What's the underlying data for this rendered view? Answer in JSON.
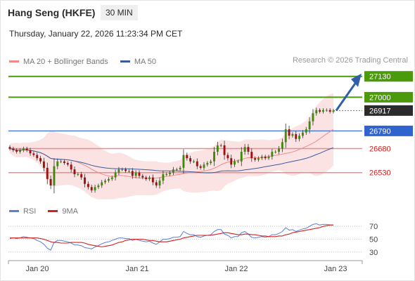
{
  "header": {
    "title": "Hang Seng (HKFE)",
    "timeframe": "30 MIN",
    "timestamp": "Thursday, January 22, 2026 11:23:34 PM CET"
  },
  "legend": {
    "ma20": {
      "label": "MA 20 + Bollinger Bands",
      "color": "#f08a8a"
    },
    "ma50": {
      "label": "MA 50",
      "color": "#3a5ba0"
    },
    "rsi": {
      "label": "RSI",
      "color": "#5b7fd6"
    },
    "rsi_ma": {
      "label": "9MA",
      "color": "#d62020"
    }
  },
  "credit": "Research © 2026 Trading Central",
  "chart_data": {
    "type": "candlestick",
    "price_range": [
      26380,
      27190
    ],
    "x_labels": [
      "Jan 20",
      "Jan 21",
      "Jan 22",
      "Jan 23"
    ],
    "levels": [
      {
        "value": 27130,
        "label": "27130",
        "kind": "resistance"
      },
      {
        "value": 27000,
        "label": "27000",
        "kind": "resistance"
      },
      {
        "value": 26917,
        "label": "26917",
        "kind": "last"
      },
      {
        "value": 26790,
        "label": "26790",
        "kind": "pivot"
      },
      {
        "value": 26680,
        "label": "26680",
        "kind": "support"
      },
      {
        "value": 26530,
        "label": "26530",
        "kind": "support"
      }
    ],
    "close": [
      26680,
      26670,
      26660,
      26670,
      26680,
      26670,
      26650,
      26640,
      26620,
      26600,
      26560,
      26490,
      26450,
      26570,
      26600,
      26600,
      26590,
      26580,
      26550,
      26520,
      26520,
      26500,
      26460,
      26440,
      26420,
      26440,
      26450,
      26470,
      26480,
      26490,
      26500,
      26530,
      26550,
      26550,
      26540,
      26540,
      26510,
      26530,
      26510,
      26500,
      26490,
      26500,
      26470,
      26450,
      26480,
      26520,
      26520,
      26530,
      26550,
      26550,
      26560,
      26640,
      26620,
      26600,
      26600,
      26570,
      26560,
      26580,
      26590,
      26600,
      26660,
      26700,
      26700,
      26640,
      26620,
      26580,
      26600,
      26600,
      26660,
      26690,
      26660,
      26620,
      26610,
      26620,
      26630,
      26620,
      26630,
      26660,
      26660,
      26680,
      26720,
      26800,
      26760,
      26770,
      26740,
      26760,
      26780,
      26800,
      26850,
      26900,
      26920,
      26910,
      26920,
      26920,
      26910,
      26917
    ],
    "rsi": {
      "range": [
        20,
        80
      ],
      "ticks": [
        70,
        50,
        30
      ],
      "rsi": [
        51,
        52,
        51,
        52,
        54,
        53,
        52,
        51,
        48,
        46,
        42,
        36,
        33,
        45,
        48,
        48,
        47,
        46,
        44,
        41,
        41,
        40,
        37,
        36,
        35,
        38,
        40,
        43,
        45,
        46,
        48,
        50,
        52,
        52,
        51,
        51,
        48,
        50,
        48,
        47,
        46,
        47,
        44,
        42,
        46,
        50,
        50,
        51,
        53,
        53,
        54,
        62,
        59,
        57,
        57,
        54,
        53,
        55,
        56,
        57,
        62,
        65,
        65,
        58,
        56,
        52,
        54,
        54,
        60,
        62,
        58,
        53,
        52,
        53,
        54,
        53,
        54,
        57,
        57,
        59,
        62,
        68,
        64,
        65,
        62,
        64,
        66,
        67,
        70,
        73,
        74,
        72,
        73,
        73,
        72,
        72
      ],
      "ma": [
        52,
        52,
        52,
        52,
        52,
        52,
        52,
        52,
        52,
        51,
        50,
        48,
        46,
        45,
        45,
        44,
        44,
        44,
        45,
        45,
        45,
        45,
        44,
        42,
        41,
        40,
        39,
        38,
        39,
        40,
        41,
        43,
        45,
        46,
        48,
        49,
        50,
        50,
        50,
        50,
        49,
        48,
        48,
        47,
        46,
        46,
        46,
        47,
        48,
        49,
        50,
        52,
        53,
        54,
        55,
        56,
        56,
        56,
        56,
        56,
        57,
        58,
        59,
        60,
        60,
        59,
        58,
        57,
        57,
        58,
        58,
        57,
        57,
        56,
        55,
        55,
        54,
        54,
        54,
        55,
        55,
        57,
        58,
        60,
        61,
        62,
        63,
        64,
        65,
        66,
        67,
        68,
        70,
        71,
        72,
        72
      ]
    }
  }
}
